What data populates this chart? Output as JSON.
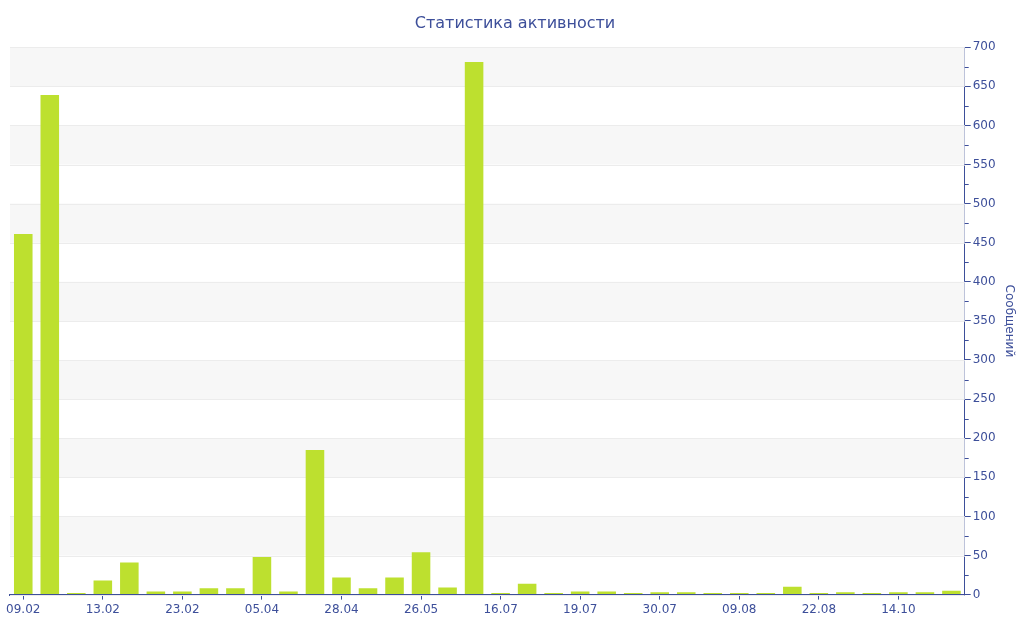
{
  "chart_data": {
    "type": "bar",
    "title": "Статистика активности",
    "ylabel": "Сообщений",
    "categories": [
      "09.02",
      null,
      null,
      "13.02",
      null,
      null,
      "23.02",
      null,
      null,
      "05.04",
      null,
      null,
      "28.04",
      null,
      null,
      "26.05",
      null,
      null,
      "16.07",
      null,
      null,
      "19.07",
      null,
      null,
      "30.07",
      null,
      null,
      "09.08",
      null,
      null,
      "22.08",
      null,
      null,
      "14.10",
      null,
      null
    ],
    "values": [
      461,
      639,
      2,
      18,
      41,
      4,
      4,
      8,
      8,
      48,
      4,
      185,
      22,
      8,
      22,
      54,
      9,
      681,
      2,
      14,
      2,
      4,
      4,
      2,
      3,
      3,
      2,
      2,
      2,
      10,
      2,
      3,
      2,
      3,
      3,
      5
    ],
    "color": "#bde02f",
    "ylim": [
      0,
      700
    ],
    "yticks": [
      0,
      50,
      100,
      150,
      200,
      250,
      300,
      350,
      400,
      450,
      500,
      550,
      600,
      650,
      700
    ],
    "grid": "y",
    "legend": false
  }
}
